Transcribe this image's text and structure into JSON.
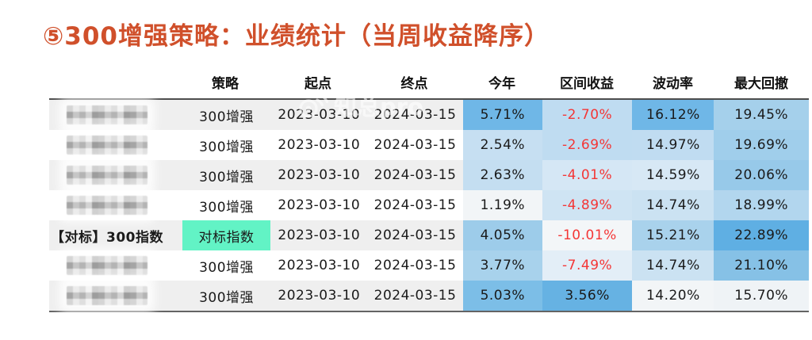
{
  "title": "⑤300增强策略：业绩统计（当周收益降序）",
  "title_color": "#D0502B",
  "watermark": {
    "icon": "weibo-icon",
    "text": "知总pro"
  },
  "table": {
    "columns": [
      "",
      "策略",
      "起点",
      "终点",
      "今年",
      "区间收益",
      "波动率",
      "最大回撤"
    ],
    "highlight_green": "#62F3C5",
    "negative_color": "#F43636",
    "stripe_color": "#EFEFEF",
    "rows": [
      {
        "name": "",
        "masked": true,
        "strategy": "300增强",
        "strategy_bg": "",
        "start": "2023-03-10",
        "end": "2024-03-15",
        "metrics": [
          {
            "v": "5.71%",
            "bg": "#6FB7E7",
            "neg": false
          },
          {
            "v": "-2.70%",
            "bg": "#BFDCF1",
            "neg": true
          },
          {
            "v": "16.12%",
            "bg": "#6FB7E7",
            "neg": false
          },
          {
            "v": "19.45%",
            "bg": "#A5D0EB",
            "neg": false
          }
        ]
      },
      {
        "name": "",
        "masked": true,
        "strategy": "300增强",
        "strategy_bg": "",
        "start": "2023-03-10",
        "end": "2024-03-15",
        "metrics": [
          {
            "v": "2.54%",
            "bg": "#C6DFF2",
            "neg": false
          },
          {
            "v": "-2.69%",
            "bg": "#BFDCF1",
            "neg": true
          },
          {
            "v": "14.97%",
            "bg": "#C0DCF1",
            "neg": false
          },
          {
            "v": "19.69%",
            "bg": "#A0CEEB",
            "neg": false
          }
        ]
      },
      {
        "name": "",
        "masked": true,
        "strategy": "300增强",
        "strategy_bg": "",
        "start": "2023-03-10",
        "end": "2024-03-15",
        "metrics": [
          {
            "v": "2.63%",
            "bg": "#C4DEF1",
            "neg": false
          },
          {
            "v": "-4.01%",
            "bg": "#D5E7F5",
            "neg": true
          },
          {
            "v": "14.59%",
            "bg": "#D7E8F5",
            "neg": false
          },
          {
            "v": "20.06%",
            "bg": "#97C9E9",
            "neg": false
          }
        ]
      },
      {
        "name": "",
        "masked": true,
        "strategy": "300增强",
        "strategy_bg": "",
        "start": "2023-03-10",
        "end": "2024-03-15",
        "metrics": [
          {
            "v": "1.19%",
            "bg": "#F2F5F7",
            "neg": false
          },
          {
            "v": "-4.89%",
            "bg": "#CFE4F3",
            "neg": true
          },
          {
            "v": "14.74%",
            "bg": "#CBE2F2",
            "neg": false
          },
          {
            "v": "18.99%",
            "bg": "#B2D6EE",
            "neg": false
          }
        ]
      },
      {
        "name": "【对标】300指数",
        "masked": false,
        "strategy": "对标指数",
        "strategy_bg": "#62F3C5",
        "start": "2023-03-10",
        "end": "2024-03-15",
        "metrics": [
          {
            "v": "4.05%",
            "bg": "#9DCCEA",
            "neg": false
          },
          {
            "v": "-10.01%",
            "bg": "#F3F6F8",
            "neg": true
          },
          {
            "v": "15.21%",
            "bg": "#A9D2EC",
            "neg": false
          },
          {
            "v": "22.89%",
            "bg": "#5FAFE3",
            "neg": false
          }
        ]
      },
      {
        "name": "",
        "masked": true,
        "strategy": "300增强",
        "strategy_bg": "",
        "start": "2023-03-10",
        "end": "2024-03-15",
        "metrics": [
          {
            "v": "3.77%",
            "bg": "#A8D2EC",
            "neg": false
          },
          {
            "v": "-7.49%",
            "bg": "#E3EEF7",
            "neg": true
          },
          {
            "v": "14.74%",
            "bg": "#CBE2F2",
            "neg": false
          },
          {
            "v": "21.10%",
            "bg": "#86C1E6",
            "neg": false
          }
        ]
      },
      {
        "name": "",
        "masked": true,
        "strategy": "300增强",
        "strategy_bg": "",
        "start": "2023-03-10",
        "end": "2024-03-15",
        "metrics": [
          {
            "v": "5.03%",
            "bg": "#7CBEE7",
            "neg": false
          },
          {
            "v": "3.56%",
            "bg": "#66B2E3",
            "neg": false
          },
          {
            "v": "14.20%",
            "bg": "#F2F5F7",
            "neg": false
          },
          {
            "v": "15.70%",
            "bg": "#EFF3F6",
            "neg": false
          }
        ]
      }
    ]
  }
}
